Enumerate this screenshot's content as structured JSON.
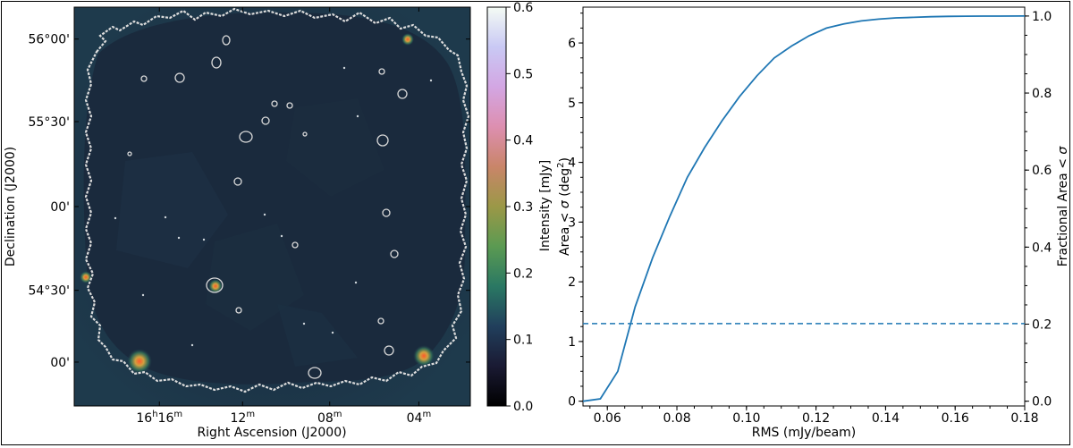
{
  "chart_data": [
    {
      "type": "heatmap",
      "xlabel": "Right Ascension (J2000)",
      "ylabel": "Declination (J2000)",
      "x_tick_labels": [
        {
          "base": "16",
          "sup1": "h",
          "val": "16",
          "sup2": "m"
        },
        {
          "base": "12",
          "sup": "m"
        },
        {
          "base": "08",
          "sup": "m"
        },
        {
          "base": "04",
          "sup": "m"
        }
      ],
      "y_tick_labels": [
        "56°00'",
        "55°30'",
        "00'",
        "54°30'",
        "00'"
      ],
      "colorbar": {
        "label": "Intensity [mJy]",
        "range": [
          0.0,
          0.6
        ],
        "tick_labels": [
          "0.0",
          "0.1",
          "0.2",
          "0.3",
          "0.4",
          "0.5",
          "0.6"
        ],
        "colormap": [
          "#000000",
          "#1a1a33",
          "#213f5c",
          "#2a7863",
          "#5b9a52",
          "#9b9847",
          "#c98569",
          "#dd8fb0",
          "#d3a6e3",
          "#c9c9f4",
          "#f4fbf4"
        ]
      },
      "background_color": "#1b3446",
      "contour_color": "#d9d9d9"
    },
    {
      "type": "line",
      "xlabel": "RMS (mJy/beam)",
      "ylabel": "Area < σ (deg²)",
      "ylabel_parts": {
        "prefix": "Area < ",
        "sigma": "σ",
        "open": " (deg",
        "sup": "2",
        "close": ")"
      },
      "y2label": "Fractional Area < σ",
      "y2label_parts": {
        "prefix": "Fractional Area < ",
        "sigma": "σ"
      },
      "xlim": [
        0.053,
        0.18
      ],
      "ylim": [
        -0.08,
        6.6
      ],
      "y2lim": [
        -0.0124,
        1.023
      ],
      "x_ticks": [
        "0.06",
        "0.08",
        "0.10",
        "0.12",
        "0.14",
        "0.16",
        "0.18"
      ],
      "y_ticks": [
        "0",
        "1",
        "2",
        "3",
        "4",
        "5",
        "6"
      ],
      "y2_ticks": [
        "0.0",
        "0.2",
        "0.4",
        "0.6",
        "0.8",
        "1.0"
      ],
      "series": [
        {
          "color": "#1f77b4",
          "x": [
            0.053,
            0.058,
            0.063,
            0.068,
            0.073,
            0.078,
            0.083,
            0.088,
            0.093,
            0.098,
            0.103,
            0.108,
            0.113,
            0.118,
            0.123,
            0.128,
            0.133,
            0.138,
            0.143,
            0.148,
            0.153,
            0.158,
            0.163,
            0.168,
            0.173,
            0.18
          ],
          "y": [
            0.0,
            0.04,
            0.5,
            1.58,
            2.4,
            3.1,
            3.75,
            4.25,
            4.7,
            5.1,
            5.45,
            5.75,
            5.95,
            6.12,
            6.25,
            6.32,
            6.37,
            6.4,
            6.42,
            6.43,
            6.44,
            6.445,
            6.448,
            6.45,
            6.45,
            6.452
          ]
        }
      ],
      "hline": {
        "y": 1.3,
        "style": "dashed",
        "color": "#1f77b4"
      }
    }
  ]
}
